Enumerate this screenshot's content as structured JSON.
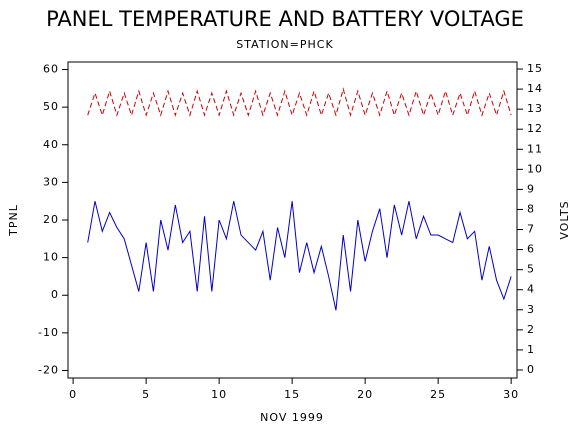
{
  "chart_data": {
    "type": "line",
    "title": "PANEL TEMPERATURE AND BATTERY VOLTAGE",
    "subtitle": "STATION=PHCK",
    "x_label": "NOV 1999",
    "y_label": "TPNL",
    "y2_label": "VOLTS",
    "x": [
      1,
      1.5,
      2,
      2.5,
      3,
      3.5,
      4,
      4.5,
      5,
      5.5,
      6,
      6.5,
      7,
      7.5,
      8,
      8.5,
      9,
      9.5,
      10,
      10.5,
      11,
      11.5,
      12,
      12.5,
      13,
      13.5,
      14,
      14.5,
      15,
      15.5,
      16,
      16.5,
      17,
      17.5,
      18,
      18.5,
      19,
      19.5,
      20,
      20.5,
      21,
      21.5,
      22,
      22.5,
      23,
      23.5,
      24,
      24.5,
      25,
      25.5,
      26,
      26.5,
      27,
      27.5,
      28,
      28.5,
      29,
      29.5,
      30
    ],
    "series": [
      {
        "name": "TPNL",
        "color": "#0000cc",
        "dashed": false,
        "values": [
          14,
          25,
          17,
          22,
          18,
          15,
          8,
          1,
          14,
          1,
          20,
          12,
          24,
          14,
          17,
          1,
          21,
          1,
          20,
          15,
          25,
          16,
          14,
          12,
          17,
          4,
          18,
          10,
          25,
          6,
          14,
          6,
          13,
          5,
          -4,
          16,
          1,
          20,
          9,
          17,
          23,
          10,
          24,
          16,
          25,
          15,
          21,
          16,
          16,
          15,
          14,
          22,
          15,
          17,
          4,
          13,
          4,
          -1,
          5
        ]
      },
      {
        "name": "VOLTS",
        "color": "#cc0000",
        "axis": "y2",
        "dashed": true,
        "values": [
          12.7,
          13.8,
          12.7,
          13.9,
          12.7,
          13.8,
          12.7,
          13.9,
          12.7,
          13.8,
          12.7,
          13.9,
          12.7,
          13.8,
          12.7,
          13.9,
          12.7,
          13.8,
          12.7,
          13.9,
          12.7,
          13.8,
          12.7,
          13.9,
          12.7,
          13.8,
          12.7,
          13.9,
          12.7,
          13.8,
          12.7,
          13.9,
          12.7,
          13.8,
          12.7,
          14.0,
          12.7,
          13.9,
          12.7,
          13.8,
          12.7,
          13.9,
          12.7,
          13.8,
          12.7,
          13.9,
          12.7,
          13.8,
          12.7,
          13.9,
          12.7,
          13.8,
          12.7,
          13.9,
          12.7,
          13.8,
          12.7,
          13.9,
          12.7
        ]
      }
    ],
    "xlim": [
      -0.35,
      30.4
    ],
    "xticks": [
      0,
      5,
      10,
      15,
      20,
      25,
      30
    ],
    "ylim": [
      -22,
      62
    ],
    "yticks": [
      -20,
      -10,
      0,
      10,
      20,
      30,
      40,
      50,
      60
    ],
    "y2lim": [
      -0.4,
      15.35
    ],
    "y2ticks": [
      0,
      1,
      2,
      3,
      4,
      5,
      6,
      7,
      8,
      9,
      10,
      11,
      12,
      13,
      14,
      15
    ],
    "grid": false
  }
}
